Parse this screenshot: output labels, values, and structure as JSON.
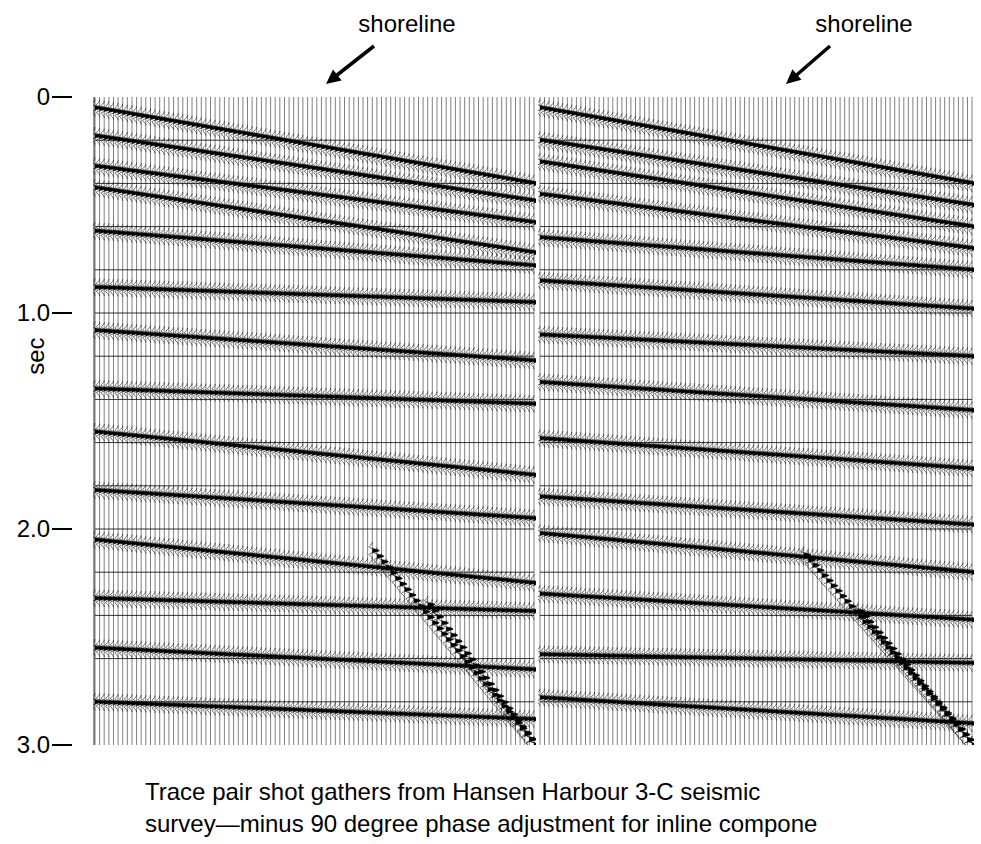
{
  "chart_data": {
    "type": "seismic_gather",
    "y_label": "sec",
    "ylim": [
      0,
      3
    ],
    "yticks": [
      0,
      {
        "value": 1,
        "label": "1.0"
      },
      {
        "value": 2,
        "label": "2.0"
      },
      {
        "value": 3,
        "label": "3.0"
      }
    ],
    "grid": true,
    "timing_lines": [
      0.2,
      0.4,
      0.6,
      0.8,
      1.0,
      1.2,
      1.4,
      1.6,
      1.8,
      2.0,
      2.2,
      2.4,
      2.6,
      2.8
    ],
    "annotations": [
      {
        "text": "shoreline",
        "panel": 0
      },
      {
        "text": "shoreline",
        "panel": 1
      }
    ],
    "caption": [
      "Trace pair shot gathers from Hansen Harbour 3-C seismic",
      "survey—minus 90 degree phase adjustment for inline compone"
    ],
    "panels": [
      {
        "n_traces": 96,
        "events": [
          {
            "t0": 0.05,
            "t1": 0.4
          },
          {
            "t0": 0.18,
            "t1": 0.48
          },
          {
            "t0": 0.32,
            "t1": 0.58
          },
          {
            "t0": 0.42,
            "t1": 0.72
          },
          {
            "t0": 0.62,
            "t1": 0.78
          },
          {
            "t0": 0.88,
            "t1": 0.95
          },
          {
            "t0": 1.08,
            "t1": 1.22
          },
          {
            "t0": 1.35,
            "t1": 1.42
          },
          {
            "t0": 1.55,
            "t1": 1.75
          },
          {
            "t0": 1.82,
            "t1": 1.95
          },
          {
            "t0": 2.05,
            "t1": 2.25
          },
          {
            "t0": 2.32,
            "t1": 2.38
          },
          {
            "t0": 2.55,
            "t1": 2.65
          },
          {
            "t0": 2.8,
            "t1": 2.88
          },
          {
            "t0": 2.1,
            "t1": 3.0,
            "traces": [
              60,
              95
            ]
          },
          {
            "t0": 2.35,
            "t1": 3.0,
            "traces": [
              72,
              95
            ]
          }
        ]
      },
      {
        "n_traces": 96,
        "events": [
          {
            "t0": 0.05,
            "t1": 0.4
          },
          {
            "t0": 0.2,
            "t1": 0.5
          },
          {
            "t0": 0.3,
            "t1": 0.6
          },
          {
            "t0": 0.45,
            "t1": 0.7
          },
          {
            "t0": 0.65,
            "t1": 0.8
          },
          {
            "t0": 0.85,
            "t1": 0.98
          },
          {
            "t0": 1.1,
            "t1": 1.2
          },
          {
            "t0": 1.32,
            "t1": 1.45
          },
          {
            "t0": 1.58,
            "t1": 1.72
          },
          {
            "t0": 1.85,
            "t1": 1.98
          },
          {
            "t0": 2.02,
            "t1": 2.2
          },
          {
            "t0": 2.3,
            "t1": 2.42
          },
          {
            "t0": 2.58,
            "t1": 2.62
          },
          {
            "t0": 2.78,
            "t1": 2.9
          },
          {
            "t0": 2.12,
            "t1": 3.0,
            "traces": [
              58,
              95
            ]
          },
          {
            "t0": 2.38,
            "t1": 3.0,
            "traces": [
              70,
              95
            ]
          }
        ]
      }
    ]
  }
}
